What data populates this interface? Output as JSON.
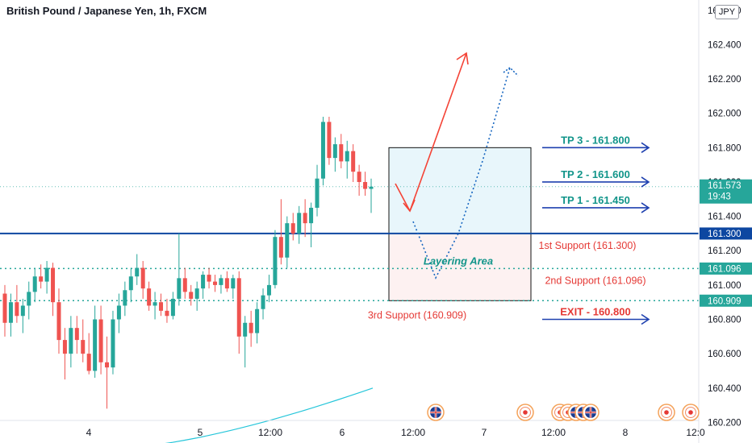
{
  "header": {
    "title": "British Pound / Japanese Yen, 1h, FXCM",
    "currency": "JPY"
  },
  "colors": {
    "up": "#26a69a",
    "down": "#ef5350",
    "ma": "#26c6da",
    "navy": "#0d47a1",
    "blue_arrow": "#1e40af",
    "red_arrow": "#f44336",
    "dotted_blue": "#1565c0",
    "teal_text": "#12958a",
    "red_text": "#e53935",
    "profit_box": "#e8f6fb",
    "loss_box": "#fdf1f1",
    "dotted_level": "#26a69a"
  },
  "chart_data": {
    "type": "candlestick",
    "title": "British Pound / Japanese Yen, 1h, FXCM",
    "y_axis_ticks": [
      "160.200",
      "160.400",
      "160.600",
      "160.800",
      "161.000",
      "161.200",
      "161.400",
      "161.600",
      "161.800",
      "162.000",
      "162.200",
      "162.400",
      "162.600"
    ],
    "ylim": [
      160.08,
      162.66
    ],
    "x_axis_ticks": [
      "4",
      "5",
      "12:00",
      "6",
      "12:00",
      "7",
      "12:00",
      "8",
      "12:0"
    ],
    "last_price": "161.573",
    "countdown": "19:43",
    "price_labels": [
      "161.300",
      "161.096",
      "160.909"
    ],
    "partial_tick": "161.600",
    "levels": [
      {
        "value": 161.3,
        "label": "1st Support (161.300)",
        "style": "solid"
      },
      {
        "value": 161.096,
        "label": "2nd Support (161.096)",
        "style": "dotted"
      },
      {
        "value": 160.909,
        "label": "3rd Support (160.909)",
        "style": "dotted"
      },
      {
        "value": 161.573,
        "style": "dotted-last"
      }
    ],
    "targets": [
      {
        "label": "TP 3 - 161.800",
        "value": 161.8
      },
      {
        "label": "TP 2 - 161.600",
        "value": 161.6
      },
      {
        "label": "TP 1 - 161.450",
        "value": 161.45
      },
      {
        "label": "EXIT - 160.800",
        "value": 160.8
      }
    ],
    "zone_label": "Layering Area",
    "box": {
      "top": 161.8,
      "mid": 161.3,
      "bottom": 160.909
    },
    "candles": [
      {
        "o": 160.95,
        "h": 161.0,
        "l": 160.7,
        "c": 160.78
      },
      {
        "o": 160.78,
        "h": 160.95,
        "l": 160.7,
        "c": 160.9
      },
      {
        "o": 160.9,
        "h": 161.0,
        "l": 160.78,
        "c": 160.82
      },
      {
        "o": 160.82,
        "h": 160.92,
        "l": 160.72,
        "c": 160.88
      },
      {
        "o": 160.88,
        "h": 161.02,
        "l": 160.8,
        "c": 160.96
      },
      {
        "o": 160.96,
        "h": 161.1,
        "l": 160.9,
        "c": 161.05
      },
      {
        "o": 161.05,
        "h": 161.12,
        "l": 160.98,
        "c": 161.02
      },
      {
        "o": 161.02,
        "h": 161.14,
        "l": 160.95,
        "c": 161.1
      },
      {
        "o": 161.1,
        "h": 161.13,
        "l": 160.82,
        "c": 160.9
      },
      {
        "o": 160.9,
        "h": 160.98,
        "l": 160.6,
        "c": 160.68
      },
      {
        "o": 160.68,
        "h": 160.75,
        "l": 160.45,
        "c": 160.6
      },
      {
        "o": 160.6,
        "h": 160.82,
        "l": 160.52,
        "c": 160.75
      },
      {
        "o": 160.75,
        "h": 160.82,
        "l": 160.6,
        "c": 160.68
      },
      {
        "o": 160.68,
        "h": 160.8,
        "l": 160.55,
        "c": 160.6
      },
      {
        "o": 160.6,
        "h": 160.72,
        "l": 160.48,
        "c": 160.5
      },
      {
        "o": 160.5,
        "h": 160.88,
        "l": 160.46,
        "c": 160.8
      },
      {
        "o": 160.8,
        "h": 160.88,
        "l": 160.48,
        "c": 160.55
      },
      {
        "o": 160.55,
        "h": 160.7,
        "l": 160.28,
        "c": 160.52
      },
      {
        "o": 160.52,
        "h": 160.85,
        "l": 160.48,
        "c": 160.8
      },
      {
        "o": 160.8,
        "h": 160.95,
        "l": 160.72,
        "c": 160.88
      },
      {
        "o": 160.88,
        "h": 161.02,
        "l": 160.82,
        "c": 160.97
      },
      {
        "o": 160.97,
        "h": 161.1,
        "l": 160.9,
        "c": 161.05
      },
      {
        "o": 161.05,
        "h": 161.18,
        "l": 161.0,
        "c": 161.1
      },
      {
        "o": 161.1,
        "h": 161.14,
        "l": 160.92,
        "c": 160.98
      },
      {
        "o": 160.98,
        "h": 161.02,
        "l": 160.85,
        "c": 160.88
      },
      {
        "o": 160.88,
        "h": 160.96,
        "l": 160.8,
        "c": 160.9
      },
      {
        "o": 160.9,
        "h": 160.95,
        "l": 160.82,
        "c": 160.85
      },
      {
        "o": 160.85,
        "h": 160.92,
        "l": 160.78,
        "c": 160.82
      },
      {
        "o": 160.82,
        "h": 160.96,
        "l": 160.8,
        "c": 160.92
      },
      {
        "o": 160.92,
        "h": 161.3,
        "l": 160.88,
        "c": 161.04
      },
      {
        "o": 161.04,
        "h": 161.1,
        "l": 160.92,
        "c": 160.96
      },
      {
        "o": 160.96,
        "h": 161.0,
        "l": 160.88,
        "c": 160.92
      },
      {
        "o": 160.92,
        "h": 161.02,
        "l": 160.85,
        "c": 160.98
      },
      {
        "o": 160.98,
        "h": 161.08,
        "l": 160.92,
        "c": 161.06
      },
      {
        "o": 161.06,
        "h": 161.1,
        "l": 160.98,
        "c": 161.02
      },
      {
        "o": 161.02,
        "h": 161.06,
        "l": 160.96,
        "c": 161.0
      },
      {
        "o": 161.0,
        "h": 161.06,
        "l": 160.95,
        "c": 161.04
      },
      {
        "o": 161.04,
        "h": 161.08,
        "l": 160.96,
        "c": 160.98
      },
      {
        "o": 160.98,
        "h": 161.06,
        "l": 160.92,
        "c": 161.04
      },
      {
        "o": 161.04,
        "h": 161.08,
        "l": 160.6,
        "c": 160.7
      },
      {
        "o": 160.7,
        "h": 160.82,
        "l": 160.52,
        "c": 160.78
      },
      {
        "o": 160.78,
        "h": 160.85,
        "l": 160.64,
        "c": 160.72
      },
      {
        "o": 160.72,
        "h": 160.9,
        "l": 160.66,
        "c": 160.86
      },
      {
        "o": 160.86,
        "h": 160.98,
        "l": 160.8,
        "c": 160.94
      },
      {
        "o": 160.94,
        "h": 161.06,
        "l": 160.9,
        "c": 161.0
      },
      {
        "o": 161.0,
        "h": 161.32,
        "l": 160.98,
        "c": 161.28
      },
      {
        "o": 161.28,
        "h": 161.5,
        "l": 161.12,
        "c": 161.16
      },
      {
        "o": 161.16,
        "h": 161.4,
        "l": 161.1,
        "c": 161.36
      },
      {
        "o": 161.36,
        "h": 161.42,
        "l": 161.26,
        "c": 161.3
      },
      {
        "o": 161.3,
        "h": 161.46,
        "l": 161.24,
        "c": 161.42
      },
      {
        "o": 161.42,
        "h": 161.5,
        "l": 161.28,
        "c": 161.36
      },
      {
        "o": 161.36,
        "h": 161.48,
        "l": 161.22,
        "c": 161.45
      },
      {
        "o": 161.45,
        "h": 161.7,
        "l": 161.4,
        "c": 161.62
      },
      {
        "o": 161.62,
        "h": 161.98,
        "l": 161.58,
        "c": 161.95
      },
      {
        "o": 161.95,
        "h": 161.98,
        "l": 161.7,
        "c": 161.74
      },
      {
        "o": 161.74,
        "h": 161.86,
        "l": 161.66,
        "c": 161.82
      },
      {
        "o": 161.82,
        "h": 161.88,
        "l": 161.68,
        "c": 161.72
      },
      {
        "o": 161.72,
        "h": 161.84,
        "l": 161.62,
        "c": 161.78
      },
      {
        "o": 161.78,
        "h": 161.82,
        "l": 161.6,
        "c": 161.66
      },
      {
        "o": 161.66,
        "h": 161.7,
        "l": 161.52,
        "c": 161.6
      },
      {
        "o": 161.6,
        "h": 161.66,
        "l": 161.52,
        "c": 161.56
      },
      {
        "o": 161.56,
        "h": 161.62,
        "l": 161.42,
        "c": 161.573
      }
    ]
  }
}
